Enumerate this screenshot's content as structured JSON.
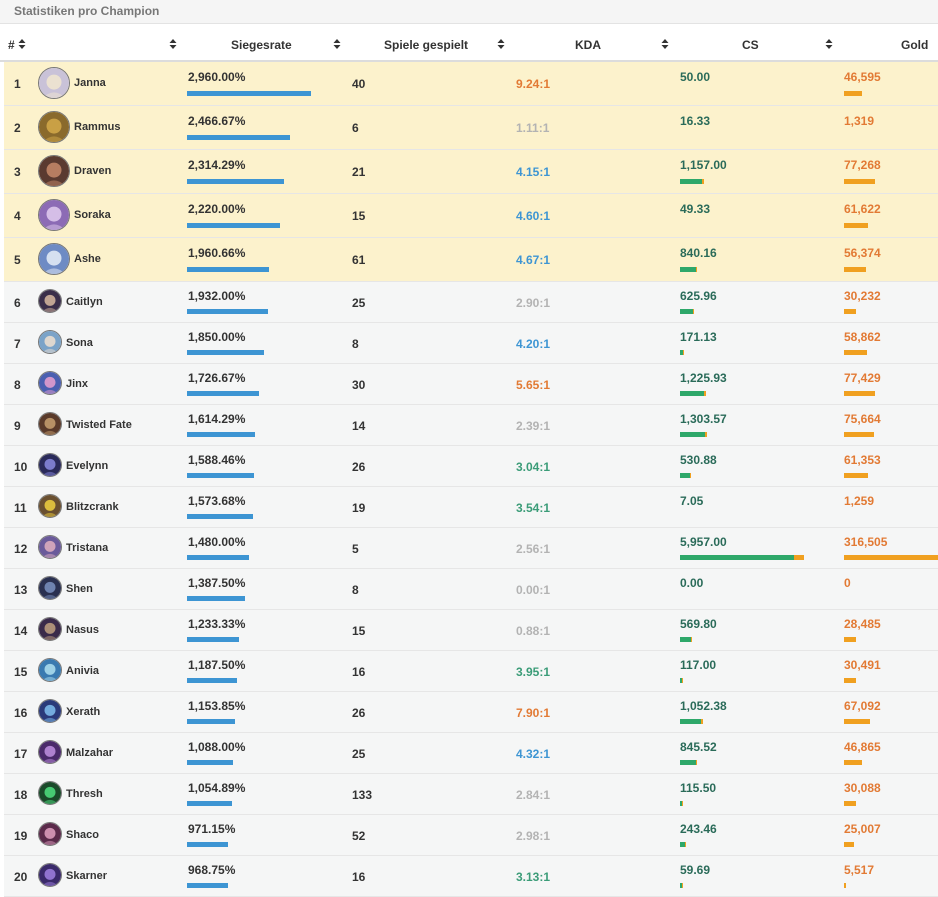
{
  "panel_title": "Statistiken pro Champion",
  "columns": {
    "rank": "#",
    "champion": "",
    "winrate": "Siegesrate",
    "games": "Spiele gespielt",
    "kda": "KDA",
    "cs": "CS",
    "gold": "Gold"
  },
  "colors": {
    "highlight_row": "#fcf2cc",
    "normal_row": "#f5f6f6",
    "winrate_bar": "#3d95d3",
    "cs_bar_green": "#2ea86a",
    "cs_bar_orange": "#f0a020",
    "gold_bar": "#f0a020",
    "kda_orange": "#e27a34",
    "kda_blue": "#3d95d3",
    "kda_green": "#3b9c78",
    "kda_gray": "#b3b3b3",
    "cs_text": "#2a6b59",
    "gold_text": "#e27a34"
  },
  "rows": [
    {
      "rank": "1",
      "champion": "Janna",
      "winrate": "2,960.00%",
      "winrate_fill": 1.0,
      "games": "40",
      "kda": "9.24:1",
      "kda_tier": "orange",
      "cs": "50.00",
      "cs_fill": 0.0,
      "gold": "46,595",
      "gold_fill": 0.19,
      "highlight": true,
      "avatar_color": "#c9c2d8",
      "avatar_accent": "#f1e6d0"
    },
    {
      "rank": "2",
      "champion": "Rammus",
      "winrate": "2,466.67%",
      "winrate_fill": 0.83,
      "games": "6",
      "kda": "1.11:1",
      "kda_tier": "gray",
      "cs": "16.33",
      "cs_fill": 0.0,
      "gold": "1,319",
      "gold_fill": 0.0,
      "highlight": true,
      "avatar_color": "#8a6a2c",
      "avatar_accent": "#d4a94a"
    },
    {
      "rank": "3",
      "champion": "Draven",
      "winrate": "2,314.29%",
      "winrate_fill": 0.78,
      "games": "21",
      "kda": "4.15:1",
      "kda_tier": "blue",
      "cs": "1,157.00",
      "cs_fill": 0.19,
      "gold": "77,268",
      "gold_fill": 0.32,
      "highlight": true,
      "avatar_color": "#5a3a30",
      "avatar_accent": "#c78a6a"
    },
    {
      "rank": "4",
      "champion": "Soraka",
      "winrate": "2,220.00%",
      "winrate_fill": 0.75,
      "games": "15",
      "kda": "4.60:1",
      "kda_tier": "blue",
      "cs": "49.33",
      "cs_fill": 0.0,
      "gold": "61,622",
      "gold_fill": 0.25,
      "highlight": true,
      "avatar_color": "#8c6bb5",
      "avatar_accent": "#e2cdf0"
    },
    {
      "rank": "5",
      "champion": "Ashe",
      "winrate": "1,960.66%",
      "winrate_fill": 0.66,
      "games": "61",
      "kda": "4.67:1",
      "kda_tier": "blue",
      "cs": "840.16",
      "cs_fill": 0.14,
      "gold": "56,374",
      "gold_fill": 0.23,
      "highlight": true,
      "avatar_color": "#6e8bc4",
      "avatar_accent": "#e8eef8"
    },
    {
      "rank": "6",
      "champion": "Caitlyn",
      "winrate": "1,932.00%",
      "winrate_fill": 0.65,
      "games": "25",
      "kda": "2.90:1",
      "kda_tier": "gray",
      "cs": "625.96",
      "cs_fill": 0.11,
      "gold": "30,232",
      "gold_fill": 0.12,
      "highlight": false,
      "avatar_color": "#3a2e4a",
      "avatar_accent": "#d8b8a0"
    },
    {
      "rank": "7",
      "champion": "Sona",
      "winrate": "1,850.00%",
      "winrate_fill": 0.62,
      "games": "8",
      "kda": "4.20:1",
      "kda_tier": "blue",
      "cs": "171.13",
      "cs_fill": 0.03,
      "gold": "58,862",
      "gold_fill": 0.24,
      "highlight": false,
      "avatar_color": "#7ba3c8",
      "avatar_accent": "#f0e0d0"
    },
    {
      "rank": "8",
      "champion": "Jinx",
      "winrate": "1,726.67%",
      "winrate_fill": 0.58,
      "games": "30",
      "kda": "5.65:1",
      "kda_tier": "orange",
      "cs": "1,225.93",
      "cs_fill": 0.21,
      "gold": "77,429",
      "gold_fill": 0.32,
      "highlight": false,
      "avatar_color": "#4a5fb0",
      "avatar_accent": "#e8a0d0"
    },
    {
      "rank": "9",
      "champion": "Twisted Fate",
      "winrate": "1,614.29%",
      "winrate_fill": 0.55,
      "games": "14",
      "kda": "2.39:1",
      "kda_tier": "gray",
      "cs": "1,303.57",
      "cs_fill": 0.22,
      "gold": "75,664",
      "gold_fill": 0.31,
      "highlight": false,
      "avatar_color": "#5a3a2a",
      "avatar_accent": "#c8a070"
    },
    {
      "rank": "10",
      "champion": "Evelynn",
      "winrate": "1,588.46%",
      "winrate_fill": 0.54,
      "games": "26",
      "kda": "3.04:1",
      "kda_tier": "green",
      "cs": "530.88",
      "cs_fill": 0.09,
      "gold": "61,353",
      "gold_fill": 0.25,
      "highlight": false,
      "avatar_color": "#2a2a5a",
      "avatar_accent": "#8a8ae0"
    },
    {
      "rank": "11",
      "champion": "Blitzcrank",
      "winrate": "1,573.68%",
      "winrate_fill": 0.53,
      "games": "19",
      "kda": "3.54:1",
      "kda_tier": "green",
      "cs": "7.05",
      "cs_fill": 0.0,
      "gold": "1,259",
      "gold_fill": 0.0,
      "highlight": false,
      "avatar_color": "#6a5030",
      "avatar_accent": "#f0d040"
    },
    {
      "rank": "12",
      "champion": "Tristana",
      "winrate": "1,480.00%",
      "winrate_fill": 0.5,
      "games": "5",
      "kda": "2.56:1",
      "kda_tier": "gray",
      "cs": "5,957.00",
      "cs_fill": 1.0,
      "gold": "316,505",
      "gold_fill": 1.0,
      "highlight": false,
      "avatar_color": "#6a5a9a",
      "avatar_accent": "#e0b0c0"
    },
    {
      "rank": "13",
      "champion": "Shen",
      "winrate": "1,387.50%",
      "winrate_fill": 0.47,
      "games": "8",
      "kda": "0.00:1",
      "kda_tier": "gray",
      "cs": "0.00",
      "cs_fill": 0.0,
      "gold": "0",
      "gold_fill": 0.0,
      "highlight": false,
      "avatar_color": "#2a3050",
      "avatar_accent": "#7a90c0"
    },
    {
      "rank": "14",
      "champion": "Nasus",
      "winrate": "1,233.33%",
      "winrate_fill": 0.42,
      "games": "15",
      "kda": "0.88:1",
      "kda_tier": "gray",
      "cs": "569.80",
      "cs_fill": 0.1,
      "gold": "28,485",
      "gold_fill": 0.12,
      "highlight": false,
      "avatar_color": "#3a2a4a",
      "avatar_accent": "#c0a080"
    },
    {
      "rank": "15",
      "champion": "Anivia",
      "winrate": "1,187.50%",
      "winrate_fill": 0.4,
      "games": "16",
      "kda": "3.95:1",
      "kda_tier": "green",
      "cs": "117.00",
      "cs_fill": 0.02,
      "gold": "30,491",
      "gold_fill": 0.12,
      "highlight": false,
      "avatar_color": "#3a7ab0",
      "avatar_accent": "#b0e0f0"
    },
    {
      "rank": "16",
      "champion": "Xerath",
      "winrate": "1,153.85%",
      "winrate_fill": 0.39,
      "games": "26",
      "kda": "7.90:1",
      "kda_tier": "orange",
      "cs": "1,052.38",
      "cs_fill": 0.18,
      "gold": "67,092",
      "gold_fill": 0.27,
      "highlight": false,
      "avatar_color": "#2a3a7a",
      "avatar_accent": "#80c0f0"
    },
    {
      "rank": "17",
      "champion": "Malzahar",
      "winrate": "1,088.00%",
      "winrate_fill": 0.37,
      "games": "25",
      "kda": "4.32:1",
      "kda_tier": "blue",
      "cs": "845.52",
      "cs_fill": 0.14,
      "gold": "46,865",
      "gold_fill": 0.19,
      "highlight": false,
      "avatar_color": "#4a2a6a",
      "avatar_accent": "#c090e0"
    },
    {
      "rank": "18",
      "champion": "Thresh",
      "winrate": "1,054.89%",
      "winrate_fill": 0.36,
      "games": "133",
      "kda": "2.84:1",
      "kda_tier": "gray",
      "cs": "115.50",
      "cs_fill": 0.02,
      "gold": "30,088",
      "gold_fill": 0.12,
      "highlight": false,
      "avatar_color": "#1a4a2a",
      "avatar_accent": "#50e080"
    },
    {
      "rank": "19",
      "champion": "Shaco",
      "winrate": "971.15%",
      "winrate_fill": 0.33,
      "games": "52",
      "kda": "2.98:1",
      "kda_tier": "gray",
      "cs": "243.46",
      "cs_fill": 0.04,
      "gold": "25,007",
      "gold_fill": 0.1,
      "highlight": false,
      "avatar_color": "#5a2a4a",
      "avatar_accent": "#e0a0c0"
    },
    {
      "rank": "20",
      "champion": "Skarner",
      "winrate": "968.75%",
      "winrate_fill": 0.33,
      "games": "16",
      "kda": "3.13:1",
      "kda_tier": "green",
      "cs": "59.69",
      "cs_fill": 0.01,
      "gold": "5,517",
      "gold_fill": 0.02,
      "highlight": false,
      "avatar_color": "#3a2a6a",
      "avatar_accent": "#a080e0"
    }
  ]
}
